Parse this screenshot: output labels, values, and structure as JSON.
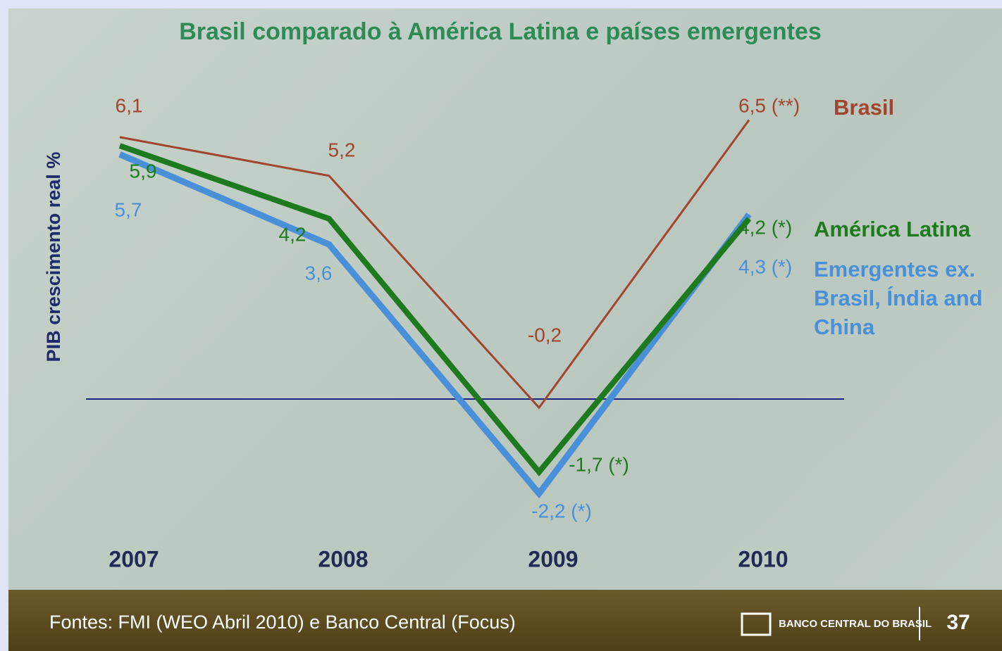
{
  "chart_data": {
    "type": "line",
    "title": "Brasil comparado à América Latina e países emergentes",
    "y_label": "PIB crescimento real %",
    "categories": [
      "2007",
      "2008",
      "2009",
      "2010"
    ],
    "ylim": [
      -3,
      7
    ],
    "series": [
      {
        "name": "Emergentes ex. Brasil, Índia and China",
        "color": "#4a90d9",
        "values": [
          5.7,
          3.6,
          -2.2,
          4.3
        ],
        "value_labels": [
          "5,7",
          "3,6",
          "-2,2 (*)",
          "4,3 (*)"
        ]
      },
      {
        "name": "América Latina",
        "color": "#1e7a1e",
        "values": [
          5.9,
          4.2,
          -1.7,
          4.2
        ],
        "value_labels": [
          "5,9",
          "4,2",
          "-1,7 (*)",
          "4,2 (*)"
        ]
      },
      {
        "name": "Brasil",
        "color": "#a0452e",
        "values": [
          6.1,
          5.2,
          -0.2,
          6.5
        ],
        "value_labels": [
          "6,1",
          "5,2",
          "-0,2",
          "6,5 (**)"
        ]
      }
    ]
  },
  "footer": {
    "source": "Fontes: FMI (WEO Abril 2010) e Banco Central (Focus)",
    "logo": "BANCO CENTRAL DO BRASIL",
    "page": "37"
  }
}
